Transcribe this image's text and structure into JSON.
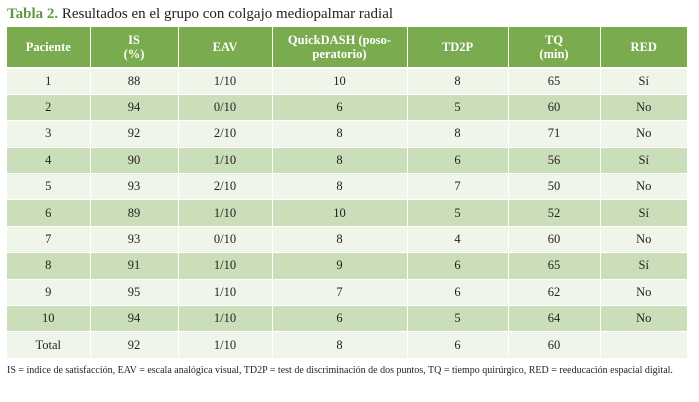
{
  "title": {
    "lead": "Tabla 2.",
    "text": " Resultados en el grupo con colgajo mediopalmar radial"
  },
  "table": {
    "headers": [
      [
        "Paciente"
      ],
      [
        "IS",
        "(%)"
      ],
      [
        "EAV"
      ],
      [
        "QuickDASH (poso-",
        "peratorio)"
      ],
      [
        "TD2P"
      ],
      [
        "TQ",
        "(min)"
      ],
      [
        "RED"
      ]
    ],
    "rows": [
      [
        "1",
        "88",
        "1/10",
        "10",
        "8",
        "65",
        "Sí"
      ],
      [
        "2",
        "94",
        "0/10",
        "6",
        "5",
        "60",
        "No"
      ],
      [
        "3",
        "92",
        "2/10",
        "8",
        "8",
        "71",
        "No"
      ],
      [
        "4",
        "90",
        "1/10",
        "8",
        "6",
        "56",
        "Sí"
      ],
      [
        "5",
        "93",
        "2/10",
        "8",
        "7",
        "50",
        "No"
      ],
      [
        "6",
        "89",
        "1/10",
        "10",
        "5",
        "52",
        "Sí"
      ],
      [
        "7",
        "93",
        "0/10",
        "8",
        "4",
        "60",
        "No"
      ],
      [
        "8",
        "91",
        "1/10",
        "9",
        "6",
        "65",
        "Sí"
      ],
      [
        "9",
        "95",
        "1/10",
        "7",
        "6",
        "62",
        "No"
      ],
      [
        "10",
        "94",
        "1/10",
        "6",
        "5",
        "64",
        "No"
      ],
      [
        "Total",
        "92",
        "1/10",
        "8",
        "6",
        "60",
        ""
      ]
    ]
  },
  "footnote": "IS = índice de satisfacción, EAV = escala analógica visual, TD2P = test de discriminación de dos puntos, TQ = tiempo quirúrgico, RED = reeducación espacial digital.",
  "colors": {
    "header_bg": "#7aab4f",
    "row_light": "#f0f5ea",
    "row_dark": "#c9deb9",
    "title_lead": "#5f9a3c"
  }
}
